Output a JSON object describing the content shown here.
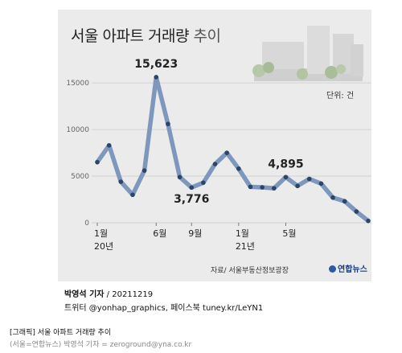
{
  "title": {
    "main": "서울 아파트 거래량",
    "sub": "추이"
  },
  "unit": "단위: 건",
  "source": "자료/ 서울부동산정보광장",
  "logo": "연합뉴스",
  "credit": {
    "author": "박영석 기자",
    "date": "20211219",
    "social": "트위터 @yonhap_graphics, 페이스북 tuney.kr/LeYN1"
  },
  "caption": {
    "title": "[그래픽] 서울 아파트 거래량 추이",
    "byline": "(서울=연합뉴스) 박영석 기자 = zeroground@yna.co.kr"
  },
  "chart_data": {
    "type": "line",
    "title": "서울 아파트 거래량 추이",
    "ylabel": "단위: 건",
    "ylim": [
      0,
      17000
    ],
    "yticks": [
      0,
      5000,
      10000,
      15000
    ],
    "ytick_labels": [
      "0",
      "5000",
      "10000",
      "15000"
    ],
    "x": [
      "20.1",
      "20.2",
      "20.3",
      "20.4",
      "20.5",
      "20.6",
      "20.7",
      "20.8",
      "20.9",
      "20.10",
      "20.11",
      "20.12",
      "21.1",
      "21.2",
      "21.3",
      "21.4",
      "21.5",
      "21.6",
      "21.7",
      "21.8",
      "21.9",
      "21.10",
      "21.11",
      "21.12"
    ],
    "x_tick_labels": [
      {
        "index": 0,
        "lines": [
          "1월",
          "20년"
        ]
      },
      {
        "index": 5,
        "lines": [
          "6월"
        ]
      },
      {
        "index": 8,
        "lines": [
          "9월"
        ]
      },
      {
        "index": 12,
        "lines": [
          "1월",
          "21년"
        ]
      },
      {
        "index": 16,
        "lines": [
          "5월"
        ]
      }
    ],
    "values": [
      6500,
      8300,
      4400,
      3000,
      5600,
      15623,
      10600,
      4900,
      3776,
      4300,
      6300,
      7500,
      5800,
      3850,
      3800,
      3700,
      4895,
      3950,
      4700,
      4200,
      2700,
      2300,
      1200,
      200
    ],
    "annotations": [
      {
        "index": 5,
        "text": "15,623"
      },
      {
        "index": 8,
        "text": "3,776"
      },
      {
        "index": 16,
        "text": "4,895"
      }
    ],
    "colors": {
      "line": "#7e98bd",
      "marker": "#2d4466",
      "background": "#ebebeb",
      "grid": "#d2d2d2"
    },
    "grid": true
  }
}
